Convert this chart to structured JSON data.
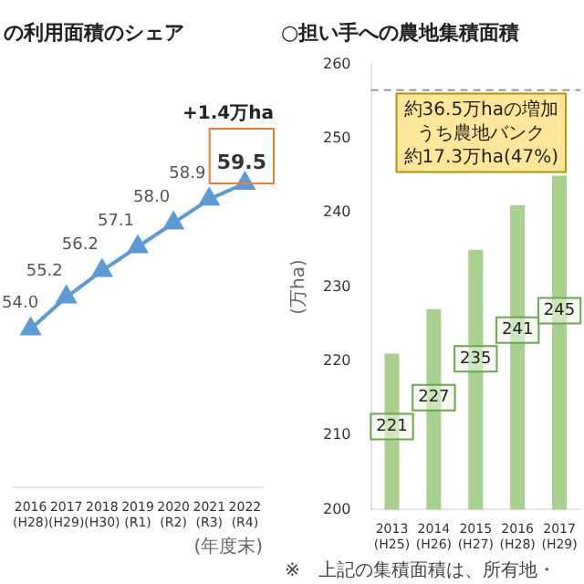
{
  "chart_data": [
    {
      "type": "line",
      "title": "の利用面積のシェア",
      "xlabel": "(年度末)",
      "categories": [
        "2016 (H28)",
        "2017 (H29)",
        "2018 (H30)",
        "2019 (R1)",
        "2020 (R2)",
        "2021 (R3)",
        "2022 (R4)"
      ],
      "series": [
        {
          "color": "#5b9bd5",
          "values": [
            54.0,
            55.2,
            56.2,
            57.1,
            58.0,
            58.9,
            59.5
          ],
          "value_labels": [
            "54.0",
            "55.2",
            "56.2",
            "57.1",
            "58.0",
            "58.9",
            "59.5"
          ]
        }
      ],
      "marker": "triangle",
      "grid": false,
      "legend": false,
      "annotations": [
        "+1.4万ha"
      ]
    },
    {
      "type": "bar",
      "title": "○担い手への農地集積面積",
      "ylabel": "(万ha)",
      "categories": [
        "2013 (H25)",
        "2014 (H26)",
        "2015 (H27)",
        "2016 (H28)",
        "2017 (H29)"
      ],
      "series": [
        {
          "color": "#a9d18e",
          "values": [
            221,
            227,
            235,
            241,
            245
          ]
        }
      ],
      "ylim": [
        200,
        260
      ],
      "yticks": [
        200,
        210,
        220,
        230,
        240,
        250,
        260
      ],
      "data_labels": true,
      "grid": false,
      "legend": false,
      "ref_lines": [
        {
          "axis": "y",
          "value": 256.5,
          "color": "#999999",
          "line_style": "dashed"
        }
      ],
      "annotations": [
        "約36.5万haの増加",
        "うち農地バンク",
        "約17.3万ha(47%)",
        "※　上記の集積面積は、所有地・"
      ]
    }
  ]
}
